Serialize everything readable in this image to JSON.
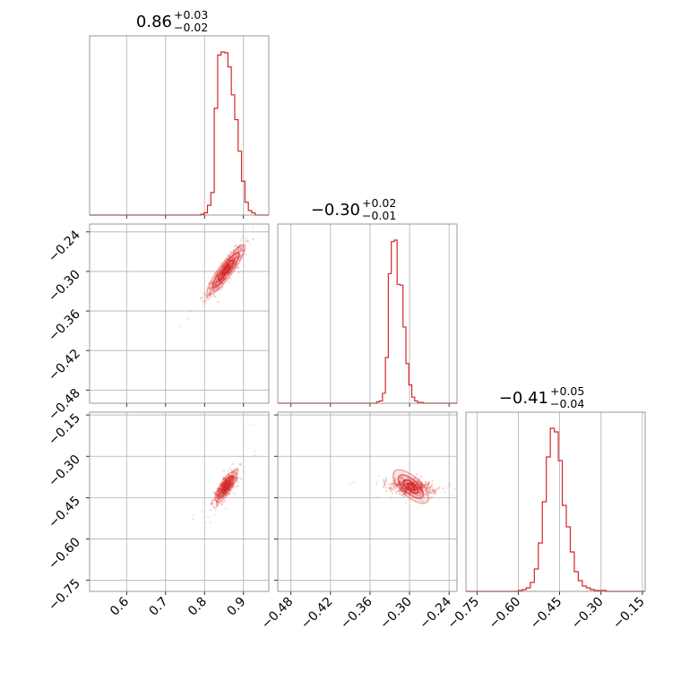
{
  "chart_data": {
    "type": "corner",
    "color": "#d62728",
    "grid": true,
    "parameters": [
      {
        "title_main": "0.86",
        "title_plus": "+0.03",
        "title_minus": "−0.02",
        "range": [
          0.505,
          0.965
        ],
        "ticks": [
          {
            "value": 0.6,
            "label": "0.6"
          },
          {
            "value": 0.7,
            "label": "0.7"
          },
          {
            "value": 0.8,
            "label": "0.8"
          },
          {
            "value": 0.9,
            "label": "0.9"
          }
        ],
        "histogram": {
          "edges_start": 0.79,
          "bin_width": 0.00875,
          "counts": [
            1,
            3,
            13,
            30,
            142,
            213,
            217,
            216,
            197,
            160,
            127,
            85,
            45,
            17,
            6,
            3
          ]
        }
      },
      {
        "title_main": "−0.30",
        "title_plus": "+0.02",
        "title_minus": "−0.01",
        "range": [
          -0.5,
          -0.228
        ],
        "ticks": [
          {
            "value": -0.48,
            "label": "−0.48"
          },
          {
            "value": -0.42,
            "label": "−0.42"
          },
          {
            "value": -0.36,
            "label": "−0.36"
          },
          {
            "value": -0.3,
            "label": "−0.30"
          },
          {
            "value": -0.24,
            "label": "−0.24"
          }
        ],
        "histogram": {
          "edges_start": -0.35,
          "bin_width": 0.00445,
          "counts": [
            2,
            3,
            13,
            60,
            170,
            212,
            214,
            156,
            155,
            100,
            52,
            24,
            8,
            3,
            1,
            1
          ]
        }
      },
      {
        "title_main": "−0.41",
        "title_plus": "+0.05",
        "title_minus": "−0.04",
        "range": [
          -0.79,
          -0.14
        ],
        "ticks": [
          {
            "value": -0.75,
            "label": "−0.75"
          },
          {
            "value": -0.6,
            "label": "−0.60"
          },
          {
            "value": -0.45,
            "label": "−0.45"
          },
          {
            "value": -0.3,
            "label": "−0.30"
          },
          {
            "value": -0.15,
            "label": "−0.15"
          }
        ],
        "histogram": {
          "edges_start": -0.6,
          "bin_width": 0.0145,
          "counts": [
            1,
            2,
            4,
            10,
            25,
            54,
            100,
            150,
            182,
            178,
            146,
            96,
            72,
            44,
            22,
            12,
            6,
            4,
            2,
            1,
            1,
            1
          ]
        }
      }
    ],
    "pairs": [
      {
        "x_param": 0,
        "y_param": 1,
        "center": [
          0.855,
          -0.298
        ],
        "slope": 0.8,
        "spread_along": 0.03,
        "spread_across": 0.006
      },
      {
        "x_param": 0,
        "y_param": 2,
        "center": [
          0.855,
          -0.41
        ],
        "slope": 2.3,
        "spread_along": 0.03,
        "spread_across": 0.008
      },
      {
        "x_param": 1,
        "y_param": 2,
        "center": [
          -0.298,
          -0.41
        ],
        "slope": 2.6,
        "spread_along": 0.014,
        "spread_across": 0.018
      }
    ]
  }
}
